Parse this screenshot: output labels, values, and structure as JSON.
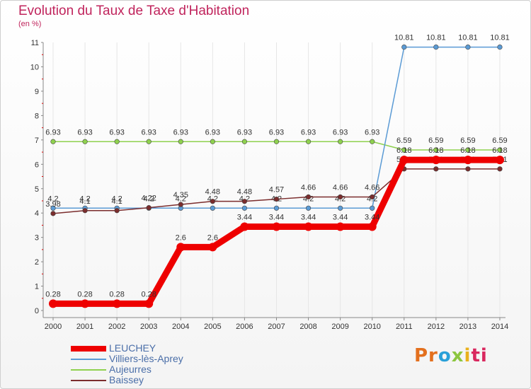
{
  "title": "Evolution du Taux de Taxe d'Habitation",
  "subtitle": "(en %)",
  "logo": {
    "text": "Proxiti",
    "p": "Pr",
    "o": "o",
    "x": "x",
    "i": "i",
    "ti": "ti"
  },
  "chart_data": {
    "type": "line",
    "title": "Evolution du Taux de Taxe d'Habitation",
    "ylabel": "(en %)",
    "xlabel": "",
    "ylim": [
      0,
      11
    ],
    "yticks": [
      0,
      1,
      2,
      3,
      4,
      5,
      6,
      7,
      8,
      9,
      10,
      11
    ],
    "x": [
      "2000",
      "2001",
      "2002",
      "2003",
      "2004",
      "2005",
      "2006",
      "2007",
      "2008",
      "2009",
      "2010",
      "2011",
      "2012",
      "2013",
      "2014"
    ],
    "series": [
      {
        "name": "Aujeurres",
        "color": "#8fd14f",
        "values": [
          6.93,
          6.93,
          6.93,
          6.93,
          6.93,
          6.93,
          6.93,
          6.93,
          6.93,
          6.93,
          6.93,
          6.59,
          6.59,
          6.59,
          6.59
        ],
        "labels": [
          "6.93",
          "6.93",
          "6.93",
          "6.93",
          "6.93",
          "6.93",
          "6.93",
          "6.93",
          "6.93",
          "6.93",
          "6.93",
          "6.59",
          "6.59",
          "6.59",
          "6.59"
        ]
      },
      {
        "name": "Villiers-lès-Aprey",
        "color": "#5b9bd5",
        "values": [
          4.2,
          4.2,
          4.2,
          4.2,
          4.2,
          4.2,
          4.2,
          4.2,
          4.2,
          4.2,
          4.2,
          10.81,
          10.81,
          10.81,
          10.81
        ],
        "labels": [
          "4.2",
          "4.2",
          "4.2",
          "4.2",
          "4.2",
          "4.2",
          "4.2",
          "4.2",
          "4.2",
          "4.2",
          "4.2",
          "10.81",
          "10.81",
          "10.81",
          "10.81"
        ]
      },
      {
        "name": "Baissey",
        "color": "#7b2d2d",
        "values": [
          3.98,
          4.1,
          4.1,
          4.22,
          4.35,
          4.48,
          4.48,
          4.57,
          4.66,
          4.66,
          4.66,
          5.81,
          5.81,
          5.81,
          5.81
        ],
        "labels": [
          "3.98",
          "4.1",
          "4.1",
          "4.22",
          "4.35",
          "4.48",
          "4.48",
          "4.57",
          "4.66",
          "4.66",
          "4.66",
          "5.81",
          "5.81",
          "5.81",
          "5.81"
        ]
      },
      {
        "name": "LEUCHEY",
        "color": "#ee0000",
        "values": [
          0.28,
          0.28,
          0.28,
          0.28,
          2.6,
          2.6,
          3.44,
          3.44,
          3.44,
          3.44,
          3.44,
          6.18,
          6.18,
          6.18,
          6.18
        ],
        "labels": [
          "0.28",
          "0.28",
          "0.28",
          "0.28",
          "2.6",
          "2.6",
          "3.44",
          "3.44",
          "3.44",
          "3.44",
          "3.44",
          "6.18",
          "6.18",
          "6.18",
          "6.18"
        ]
      }
    ],
    "legend": [
      "LEUCHEY",
      "Villiers-lès-Aprey",
      "Aujeurres",
      "Baissey"
    ],
    "legend_position": "bottom-left"
  }
}
